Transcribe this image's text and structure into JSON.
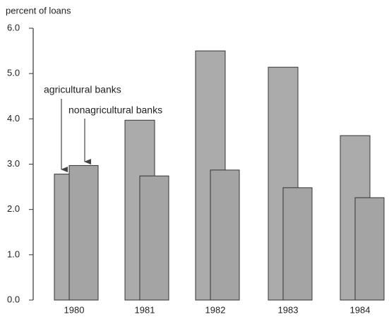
{
  "chart_data": {
    "type": "bar",
    "y_label": "percent of loans",
    "categories": [
      "1980",
      "1981",
      "1982",
      "1983",
      "1984"
    ],
    "series": [
      {
        "name": "agricultural banks",
        "color": "#ababab",
        "values": [
          2.78,
          3.97,
          5.5,
          5.14,
          3.63
        ]
      },
      {
        "name": "nonagricultural banks",
        "color": "#a4a4a4",
        "values": [
          2.97,
          2.74,
          2.87,
          2.48,
          2.26
        ]
      }
    ],
    "ylim": [
      0,
      6
    ],
    "yticks": [
      {
        "value": 0,
        "label": "0.0"
      },
      {
        "value": 1,
        "label": "1.0"
      },
      {
        "value": 2,
        "label": "2.0"
      },
      {
        "value": 3,
        "label": "3.0"
      },
      {
        "value": 4,
        "label": "4.0"
      },
      {
        "value": 5,
        "label": "5.0"
      },
      {
        "value": 6,
        "label": "6.0"
      }
    ],
    "grid": false
  }
}
